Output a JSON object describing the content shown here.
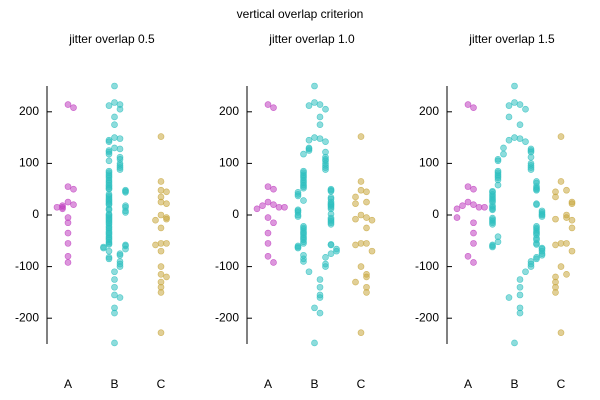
{
  "chart_data": {
    "type": "scatter",
    "title": "vertical overlap criterion",
    "categories": [
      "A",
      "B",
      "C"
    ],
    "groups": [
      {
        "color": "#c040c0",
        "values": [
          214,
          208,
          55,
          50,
          25,
          20,
          18,
          15,
          12,
          15,
          -5,
          -15,
          -35,
          -55,
          -80,
          -92
        ]
      },
      {
        "color": "#30c0c0",
        "values": [
          250,
          218,
          214,
          212,
          205,
          190,
          175,
          150,
          148,
          145,
          142,
          130,
          128,
          125,
          122,
          118,
          112,
          108,
          105,
          100,
          96,
          92,
          88,
          85,
          82,
          78,
          75,
          72,
          68,
          65,
          62,
          58,
          55,
          52,
          50,
          48,
          46,
          44,
          40,
          37,
          34,
          31,
          28,
          25,
          22,
          20,
          18,
          15,
          12,
          10,
          8,
          5,
          2,
          0,
          -3,
          -6,
          -9,
          -12,
          -15,
          -18,
          -22,
          -25,
          -28,
          -32,
          -35,
          -38,
          -42,
          -45,
          -48,
          -52,
          -55,
          -57,
          -58,
          -60,
          -62,
          -64,
          -66,
          -70,
          -75,
          -78,
          -82,
          -85,
          -90,
          -95,
          -100,
          -110,
          -125,
          -140,
          -155,
          -160,
          -180,
          -190,
          -248
        ]
      },
      {
        "color": "#c8a840",
        "values": [
          152,
          65,
          48,
          45,
          35,
          25,
          22,
          0,
          -5,
          -8,
          -10,
          -25,
          -55,
          -55,
          -58,
          -70,
          -100,
          -115,
          -120,
          -130,
          -140,
          -150,
          -228
        ]
      }
    ],
    "ylim": [
      -250,
      250
    ],
    "yticks": [
      -200,
      -100,
      0,
      100,
      200
    ],
    "panels": [
      {
        "title": "jitter overlap 0.5",
        "overlap": 0.5
      },
      {
        "title": "jitter overlap 1.0",
        "overlap": 1.0
      },
      {
        "title": "jitter overlap 1.5",
        "overlap": 1.5
      }
    ]
  }
}
